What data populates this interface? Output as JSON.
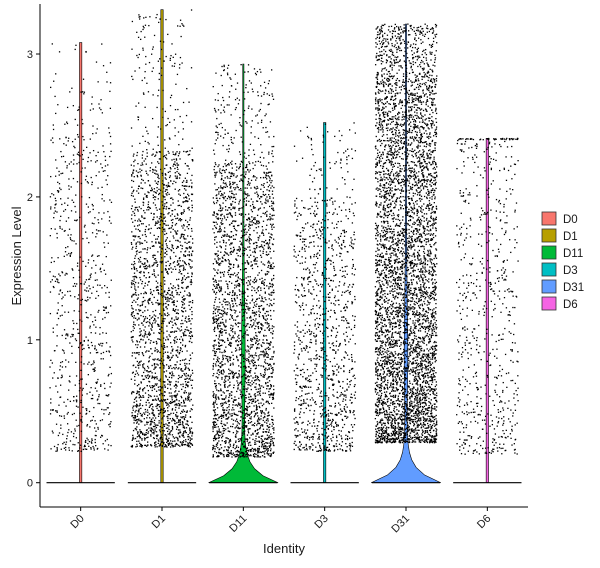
{
  "chart_data": {
    "type": "violin",
    "xlabel": "Identity",
    "ylabel": "Expression Level",
    "ylim": [
      -0.17,
      3.35
    ],
    "yticks": [
      0,
      1,
      2,
      3
    ],
    "grid": false,
    "legend_position": "right",
    "colors": {
      "D0": "#F8766D",
      "D1": "#B79F00",
      "D11": "#00BA38",
      "D3": "#00BFC4",
      "D31": "#619CFF",
      "D6": "#F564E3"
    },
    "groups": [
      {
        "name": "D0",
        "max": 3.08,
        "band_low": 0.22,
        "band_high": 2.45,
        "points": 750,
        "zero_peak_width": 0.02
      },
      {
        "name": "D1",
        "max": 3.31,
        "band_low": 0.25,
        "band_high": 2.32,
        "points": 2300,
        "zero_peak_width": 0.02
      },
      {
        "name": "D11",
        "max": 2.93,
        "band_low": 0.18,
        "band_high": 2.25,
        "points": 2700,
        "zero_peak_width": 1.0
      },
      {
        "name": "D3",
        "max": 2.52,
        "band_low": 0.22,
        "band_high": 2.0,
        "points": 1100,
        "zero_peak_width": 0.02
      },
      {
        "name": "D31",
        "max": 3.21,
        "band_low": 0.28,
        "band_high": 2.85,
        "points": 5200,
        "zero_peak_width": 1.0
      },
      {
        "name": "D6",
        "max": 2.41,
        "band_low": 0.2,
        "band_high": 2.4,
        "points": 650,
        "zero_peak_width": 0.02
      }
    ]
  }
}
